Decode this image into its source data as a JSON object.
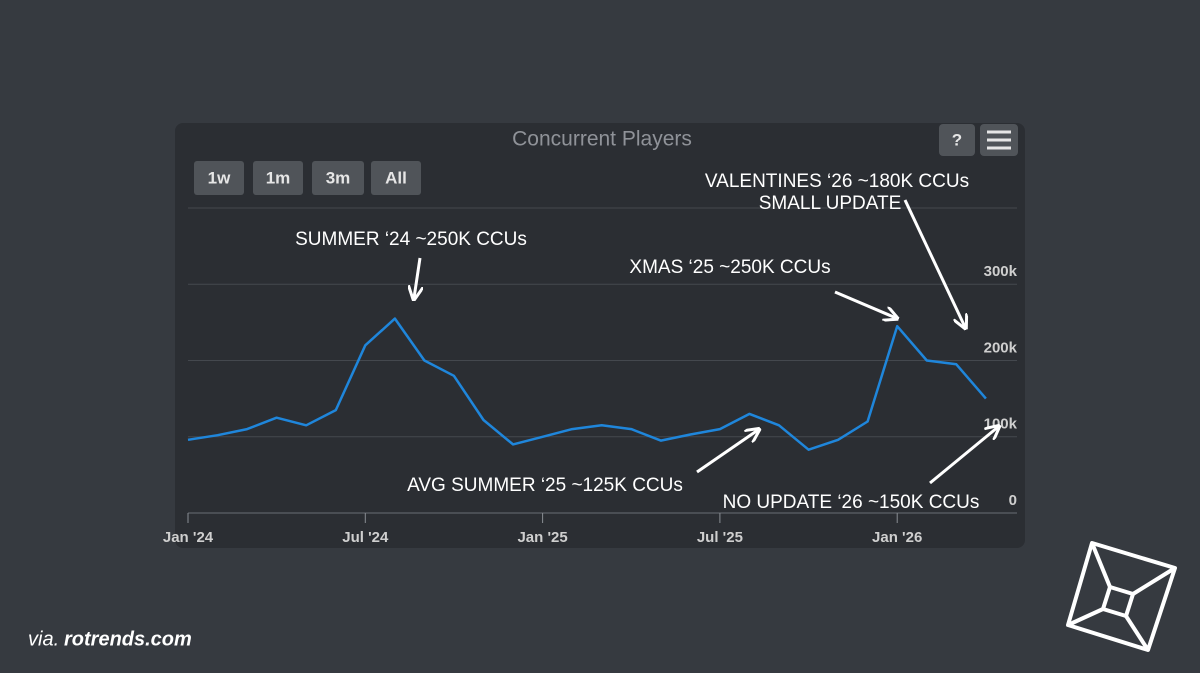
{
  "chart_data": {
    "type": "line",
    "title": "Concurrent Players",
    "buttons": [
      "1w",
      "1m",
      "3m",
      "All"
    ],
    "help_button": "?",
    "x": [
      "2024-01",
      "2024-02",
      "2024-03",
      "2024-04",
      "2024-05",
      "2024-06",
      "2024-07",
      "2024-08",
      "2024-09",
      "2024-10",
      "2024-11",
      "2024-12",
      "2025-01",
      "2025-02",
      "2025-03",
      "2025-04",
      "2025-05",
      "2025-06",
      "2025-07",
      "2025-08",
      "2025-09",
      "2025-10",
      "2025-11",
      "2025-12",
      "2026-01",
      "2026-02",
      "2026-03",
      "2026-04"
    ],
    "series": [
      {
        "color": "#1f86db",
        "values": [
          96000,
          102000,
          110000,
          125000,
          115000,
          135000,
          220000,
          255000,
          200000,
          180000,
          122000,
          90000,
          100000,
          110000,
          115000,
          110000,
          95000,
          103000,
          110000,
          130000,
          115000,
          83000,
          96000,
          120000,
          245000,
          200000,
          195000,
          150000
        ]
      }
    ],
    "xticks": [
      {
        "value": "2024-01",
        "label": "Jan '24"
      },
      {
        "value": "2024-07",
        "label": "Jul '24"
      },
      {
        "value": "2025-01",
        "label": "Jan '25"
      },
      {
        "value": "2025-07",
        "label": "Jul '25"
      },
      {
        "value": "2026-01",
        "label": "Jan '26"
      }
    ],
    "ylim": [
      0,
      400000
    ],
    "yticks": [
      0,
      {
        "value": 100000,
        "label": "100k"
      },
      {
        "value": 200000,
        "label": "200k"
      },
      {
        "value": 300000,
        "label": "300k"
      }
    ],
    "grid": true,
    "annotations": [
      "SUMMER ‘24 ~250K CCUs",
      "XMAS ‘25 ~250K CCUs",
      "VALENTINES ‘26 ~180K CCUs",
      "SMALL UPDATE",
      "AVG SUMMER ‘25 ~125K CCUs",
      "NO UPDATE ‘26 ~150K CCUs"
    ]
  },
  "source": {
    "prefix": "via.",
    "site": "rotrends.com"
  }
}
